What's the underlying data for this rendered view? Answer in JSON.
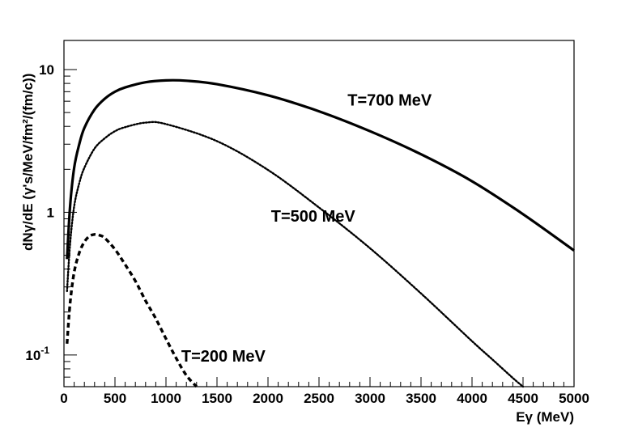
{
  "chart_data": {
    "type": "line",
    "title": "",
    "xlabel": "Eγ (MeV)",
    "ylabel": "dNγ/dE (γ's/MeV/fm²/(fm/c))",
    "y_scale": "log",
    "xlim": [
      0,
      5000
    ],
    "ylim": [
      0.06,
      16
    ],
    "x_ticks": [
      {
        "value": 0,
        "label": "0"
      },
      {
        "value": 500,
        "label": "500"
      },
      {
        "value": 1000,
        "label": "1000"
      },
      {
        "value": 1500,
        "label": "1500"
      },
      {
        "value": 2000,
        "label": "2000"
      },
      {
        "value": 2500,
        "label": "2500"
      },
      {
        "value": 3000,
        "label": "3000"
      },
      {
        "value": 3500,
        "label": "3500"
      },
      {
        "value": 4000,
        "label": "4000"
      },
      {
        "value": 4500,
        "label": "4500"
      },
      {
        "value": 5000,
        "label": "5000"
      }
    ],
    "y_ticks": [
      {
        "value": 0.1,
        "base": "10",
        "exp": "-1"
      },
      {
        "value": 1,
        "base": "1",
        "exp": ""
      },
      {
        "value": 10,
        "base": "10",
        "exp": ""
      }
    ],
    "grid": false,
    "legend": "none",
    "series": [
      {
        "name": "T=700 MeV",
        "style": "solid",
        "color": "#000000",
        "x": [
          30,
          60,
          100,
          150,
          200,
          300,
          400,
          500,
          600,
          800,
          1000,
          1200,
          1500,
          2000,
          2500,
          3000,
          3500,
          4000,
          4500,
          5000
        ],
        "y": [
          0.47,
          1.1,
          2.05,
          3.0,
          3.9,
          5.25,
          6.25,
          7.0,
          7.5,
          8.15,
          8.4,
          8.35,
          7.9,
          6.6,
          5.1,
          3.7,
          2.55,
          1.65,
          0.97,
          0.54
        ]
      },
      {
        "name": "T=500 MeV",
        "style": "dotted",
        "color": "#000000",
        "x": [
          30,
          60,
          100,
          150,
          200,
          300,
          400,
          500,
          600,
          800,
          1000,
          1500,
          2000,
          2500,
          3000,
          3500,
          4000,
          4200,
          4400,
          4500
        ],
        "y": [
          0.28,
          0.6,
          1.1,
          1.6,
          2.05,
          2.8,
          3.3,
          3.7,
          3.95,
          4.25,
          4.15,
          3.15,
          1.98,
          1.08,
          0.56,
          0.27,
          0.125,
          0.093,
          0.069,
          0.06
        ]
      },
      {
        "name": "T=200 MeV",
        "style": "dashed",
        "color": "#000000",
        "x": [
          30,
          60,
          100,
          150,
          200,
          250,
          300,
          350,
          400,
          500,
          600,
          700,
          800,
          900,
          1000,
          1100,
          1200,
          1300
        ],
        "y": [
          0.12,
          0.23,
          0.38,
          0.52,
          0.62,
          0.68,
          0.7,
          0.69,
          0.66,
          0.55,
          0.43,
          0.33,
          0.24,
          0.18,
          0.13,
          0.095,
          0.072,
          0.06
        ]
      }
    ],
    "annotations": [
      {
        "text": "T=700 MeV",
        "x": 2780,
        "y": 5.6
      },
      {
        "text": "T=500 MeV",
        "x": 2030,
        "y": 0.86
      },
      {
        "text": "T=200 MeV",
        "x": 1150,
        "y": 0.09
      }
    ]
  }
}
